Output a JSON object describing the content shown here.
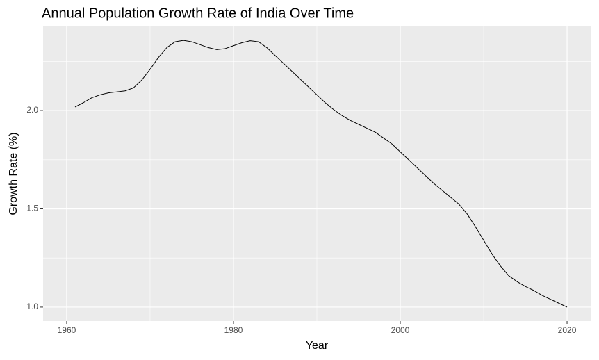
{
  "chart_data": {
    "type": "line",
    "title": "Annual Population Growth Rate of India Over Time",
    "x_label": "Year",
    "y_label": "Growth Rate (%)",
    "x": [
      1961,
      1962,
      1963,
      1964,
      1965,
      1966,
      1967,
      1968,
      1969,
      1970,
      1971,
      1972,
      1973,
      1974,
      1975,
      1976,
      1977,
      1978,
      1979,
      1980,
      1981,
      1982,
      1983,
      1984,
      1985,
      1986,
      1987,
      1988,
      1989,
      1990,
      1991,
      1992,
      1993,
      1994,
      1995,
      1996,
      1997,
      1998,
      1999,
      2000,
      2001,
      2002,
      2003,
      2004,
      2005,
      2006,
      2007,
      2008,
      2009,
      2010,
      2011,
      2012,
      2013,
      2014,
      2015,
      2016,
      2017,
      2018,
      2019,
      2020
    ],
    "series": [
      {
        "name": "Growth Rate",
        "color": "#000000",
        "values": [
          2.018,
          2.04,
          2.065,
          2.08,
          2.09,
          2.095,
          2.1,
          2.115,
          2.155,
          2.21,
          2.27,
          2.32,
          2.35,
          2.357,
          2.35,
          2.335,
          2.32,
          2.31,
          2.315,
          2.33,
          2.345,
          2.355,
          2.35,
          2.32,
          2.28,
          2.24,
          2.2,
          2.16,
          2.12,
          2.08,
          2.04,
          2.005,
          1.975,
          1.95,
          1.93,
          1.91,
          1.89,
          1.86,
          1.83,
          1.79,
          1.75,
          1.71,
          1.67,
          1.63,
          1.595,
          1.56,
          1.525,
          1.475,
          1.41,
          1.34,
          1.27,
          1.21,
          1.16,
          1.13,
          1.105,
          1.085,
          1.06,
          1.04,
          1.02,
          1.0
        ]
      }
    ],
    "xlim": [
      1957.17,
      2022.83
    ],
    "ylim": [
      0.929,
      2.428
    ],
    "xticks": [
      1960,
      1980,
      2000,
      2020
    ],
    "yticks": [
      {
        "value": 1.0,
        "label": "1.0"
      },
      {
        "value": 1.5,
        "label": "1.5"
      },
      {
        "value": 2.0,
        "label": "2.0"
      }
    ],
    "xminor": [
      1970,
      1990,
      2010
    ],
    "yminor": [
      1.25,
      1.75,
      2.25
    ],
    "grid": true
  }
}
